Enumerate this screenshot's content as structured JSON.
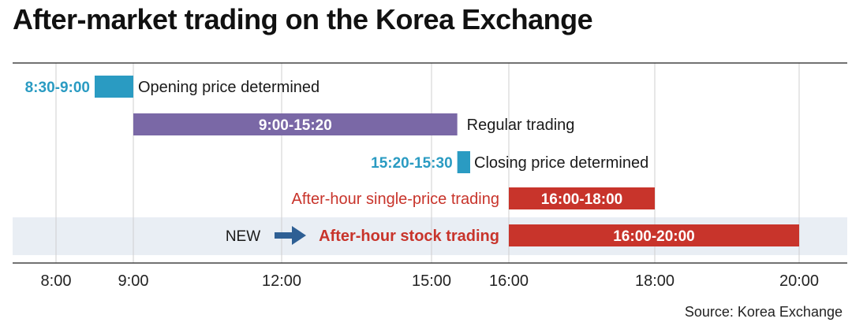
{
  "title": "After-market trading on the Korea Exchange",
  "source": "Source: Korea Exchange",
  "colors": {
    "teal": "#2a9bc2",
    "purple": "#7a68a6",
    "red": "#c8342b",
    "highlight_band": "#e9eef4",
    "arrow": "#2e5f94"
  },
  "chart_data": {
    "type": "timeline",
    "x_ticks": [
      "8:00",
      "9:00",
      "12:00",
      "15:00",
      "16:00",
      "18:00",
      "20:00"
    ],
    "grid": true,
    "rows": [
      {
        "start": "8:30",
        "end": "9:00",
        "time_label": "8:30-9:00",
        "name": "Opening price determined",
        "color": "teal"
      },
      {
        "start": "9:00",
        "end": "15:20",
        "time_label": "9:00-15:20",
        "name": "Regular trading",
        "color": "purple"
      },
      {
        "start": "15:20",
        "end": "15:30",
        "time_label": "15:20-15:30",
        "name": "Closing price determined",
        "color": "teal"
      },
      {
        "start": "16:00",
        "end": "18:00",
        "time_label": "16:00-18:00",
        "name": "After-hour single-price trading",
        "color": "red"
      },
      {
        "start": "16:00",
        "end": "20:00",
        "time_label": "16:00-20:00",
        "name": "After-hour stock trading",
        "color": "red",
        "new_label": "NEW",
        "highlighted": true
      }
    ]
  }
}
